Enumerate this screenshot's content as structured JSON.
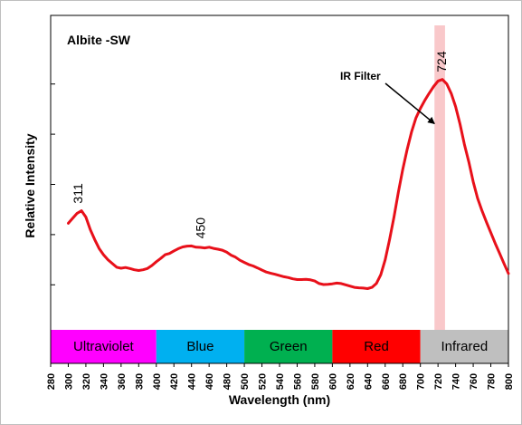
{
  "chart_data": {
    "type": "line",
    "title": "Albite -SW",
    "xlabel": "Wavelength (nm)",
    "ylabel": "Relative Intensity",
    "xlim": [
      280,
      800
    ],
    "xticks": [
      280,
      300,
      320,
      340,
      360,
      380,
      400,
      420,
      440,
      460,
      480,
      500,
      520,
      540,
      560,
      580,
      600,
      620,
      640,
      660,
      680,
      700,
      720,
      740,
      760,
      780,
      800
    ],
    "ylim": [
      0,
      100
    ],
    "grid": false,
    "series": [
      {
        "color": "#e8101a",
        "x": [
          300,
          305,
          310,
          315,
          320,
          325,
          330,
          335,
          340,
          345,
          350,
          355,
          360,
          365,
          370,
          375,
          380,
          385,
          390,
          395,
          400,
          405,
          410,
          415,
          420,
          425,
          430,
          435,
          440,
          445,
          450,
          455,
          460,
          465,
          470,
          475,
          480,
          485,
          490,
          495,
          500,
          505,
          510,
          515,
          520,
          525,
          530,
          535,
          540,
          545,
          550,
          555,
          560,
          565,
          570,
          575,
          580,
          585,
          590,
          595,
          600,
          605,
          610,
          615,
          620,
          625,
          630,
          635,
          640,
          645,
          650,
          655,
          660,
          665,
          670,
          675,
          680,
          685,
          690,
          695,
          700,
          705,
          710,
          715,
          720,
          725,
          730,
          735,
          740,
          745,
          750,
          755,
          760,
          765,
          770,
          775,
          780,
          785,
          790,
          795,
          800
        ],
        "values": [
          34.5,
          36.5,
          38.5,
          39.5,
          37.0,
          32.0,
          28.0,
          24.5,
          22.0,
          20.0,
          18.5,
          17.0,
          16.6,
          16.9,
          16.5,
          16.0,
          15.7,
          16.0,
          16.5,
          17.7,
          19.2,
          20.5,
          22.0,
          22.5,
          23.5,
          24.4,
          25.1,
          25.4,
          25.5,
          25.0,
          24.9,
          24.7,
          25.0,
          24.5,
          24.2,
          23.8,
          23.0,
          21.8,
          21.0,
          19.8,
          18.9,
          18.1,
          17.5,
          16.7,
          15.9,
          15.1,
          14.6,
          14.2,
          13.7,
          13.2,
          12.9,
          12.4,
          12.1,
          12.1,
          12.2,
          12.0,
          11.5,
          10.5,
          10.1,
          10.2,
          10.4,
          10.7,
          10.5,
          10.0,
          9.5,
          9.0,
          8.8,
          8.7,
          8.5,
          9.0,
          10.5,
          14.0,
          20.0,
          28.0,
          37.0,
          47.0,
          56.0,
          64.0,
          71.0,
          76.5,
          80.3,
          83.5,
          86.3,
          89.0,
          91.2,
          91.8,
          90.0,
          86.2,
          81.0,
          74.0,
          66.0,
          59.0,
          51.0,
          44.5,
          39.5,
          35.0,
          30.8,
          26.5,
          22.5,
          18.5,
          14.5
        ]
      }
    ],
    "peak_labels": [
      {
        "x": 311,
        "y": 39.5,
        "text": "311"
      },
      {
        "x": 450,
        "y": 25.5,
        "text": "450"
      },
      {
        "x": 724,
        "y": 91.8,
        "text": "724"
      }
    ],
    "annotation": {
      "text": "IR Filter",
      "arrow_to_x": 720,
      "arrow_to_y": 80
    },
    "filter_band": {
      "x0": 716,
      "x1": 728,
      "color": "#f7b6b8"
    },
    "bands": [
      {
        "label": "Ultraviolet",
        "x0": 280,
        "x1": 400,
        "color": "#ff00ff"
      },
      {
        "label": "Blue",
        "x0": 400,
        "x1": 500,
        "color": "#00b0f0"
      },
      {
        "label": "Green",
        "x0": 500,
        "x1": 600,
        "color": "#00b050"
      },
      {
        "label": "Red",
        "x0": 600,
        "x1": 700,
        "color": "#ff0000"
      },
      {
        "label": "Infrared",
        "x0": 700,
        "x1": 800,
        "color": "#bfbfbf"
      }
    ]
  }
}
